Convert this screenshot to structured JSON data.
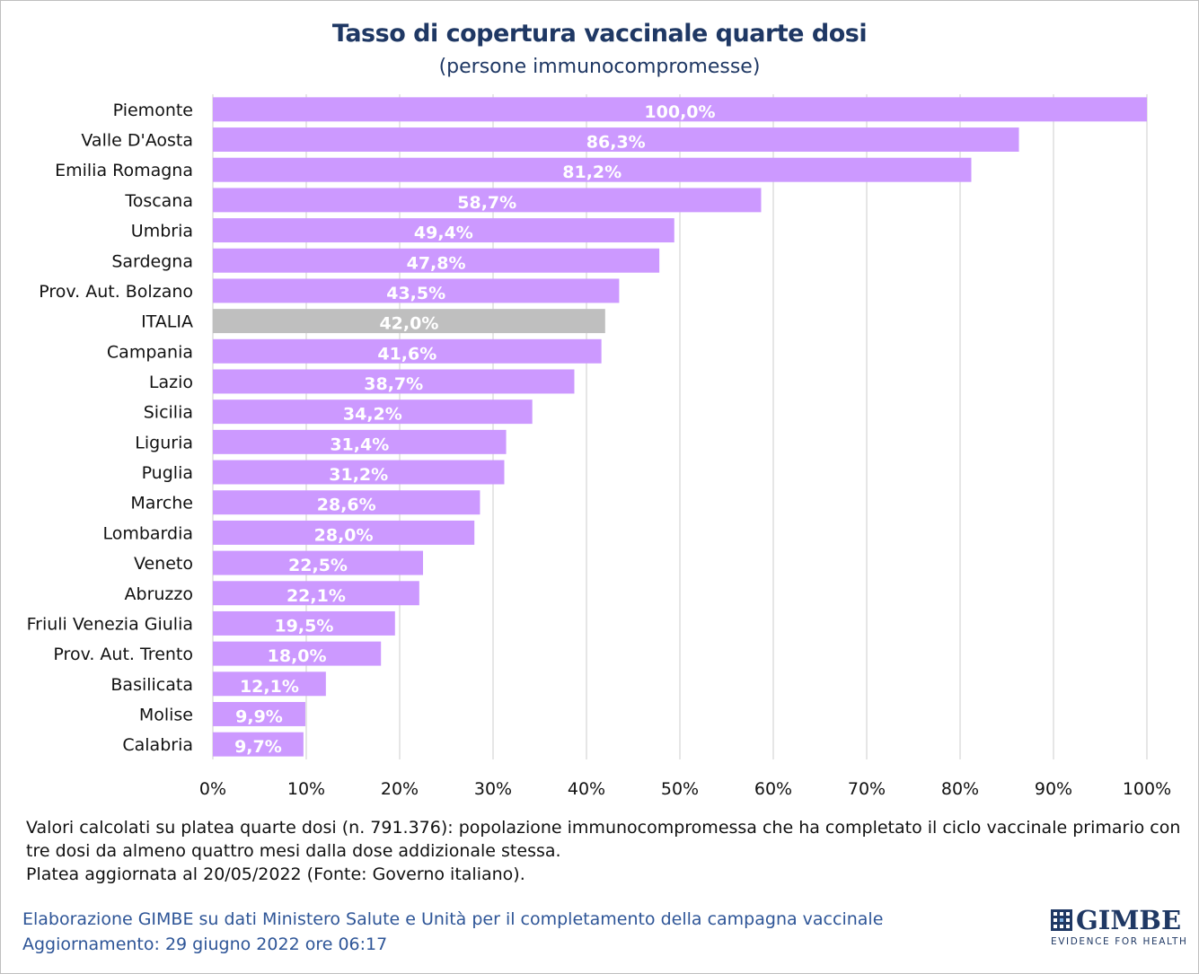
{
  "chart_data": {
    "type": "bar",
    "orientation": "horizontal",
    "title": "Tasso di copertura vaccinale quarte dosi",
    "subtitle": "(persone immunocompromesse)",
    "xlim": [
      0,
      100
    ],
    "xticks": [
      "0%",
      "10%",
      "20%",
      "30%",
      "40%",
      "50%",
      "60%",
      "70%",
      "80%",
      "90%",
      "100%"
    ],
    "grid": true,
    "categories": [
      "Piemonte",
      "Valle D'Aosta",
      "Emilia Romagna",
      "Toscana",
      "Umbria",
      "Sardegna",
      "Prov. Aut. Bolzano",
      "ITALIA",
      "Campania",
      "Lazio",
      "Sicilia",
      "Liguria",
      "Puglia",
      "Marche",
      "Lombardia",
      "Veneto",
      "Abruzzo",
      "Friuli Venezia Giulia",
      "Prov. Aut. Trento",
      "Basilicata",
      "Molise",
      "Calabria"
    ],
    "values": [
      100.0,
      86.3,
      81.2,
      58.7,
      49.4,
      47.8,
      43.5,
      42.0,
      41.6,
      38.7,
      34.2,
      31.4,
      31.2,
      28.6,
      28.0,
      22.5,
      22.1,
      19.5,
      18.0,
      12.1,
      9.9,
      9.7
    ],
    "labels": [
      "100,0%",
      "86,3%",
      "81,2%",
      "58,7%",
      "49,4%",
      "47,8%",
      "43,5%",
      "42,0%",
      "41,6%",
      "38,7%",
      "34,2%",
      "31,4%",
      "31,2%",
      "28,6%",
      "28,0%",
      "22,5%",
      "22,1%",
      "19,5%",
      "18,0%",
      "12,1%",
      "9,9%",
      "9,7%"
    ],
    "bar_color": "#cc99ff",
    "highlight": {
      "category": "ITALIA",
      "color": "#bfbfbf"
    }
  },
  "note": {
    "line1": "Valori calcolati su platea quarte dosi (n. 791.376): popolazione immunocompromessa che ha completato il ciclo vaccinale primario con",
    "line2": "tre dosi da almeno quattro mesi dalla dose addizionale stessa.",
    "line3": "Platea aggiornata al 20/05/2022 (Fonte: Governo italiano)."
  },
  "credits": {
    "line1": "Elaborazione GIMBE su dati Ministero Salute e Unità per il completamento della campagna vaccinale",
    "line2": "Aggiornamento: 29 giugno 2022 ore 06:17"
  },
  "logo": {
    "name": "GIMBE",
    "tagline": "EVIDENCE FOR HEALTH"
  },
  "colors": {
    "title": "#1f3864",
    "credits": "#2e5597",
    "grid": "#d9d9d9"
  }
}
